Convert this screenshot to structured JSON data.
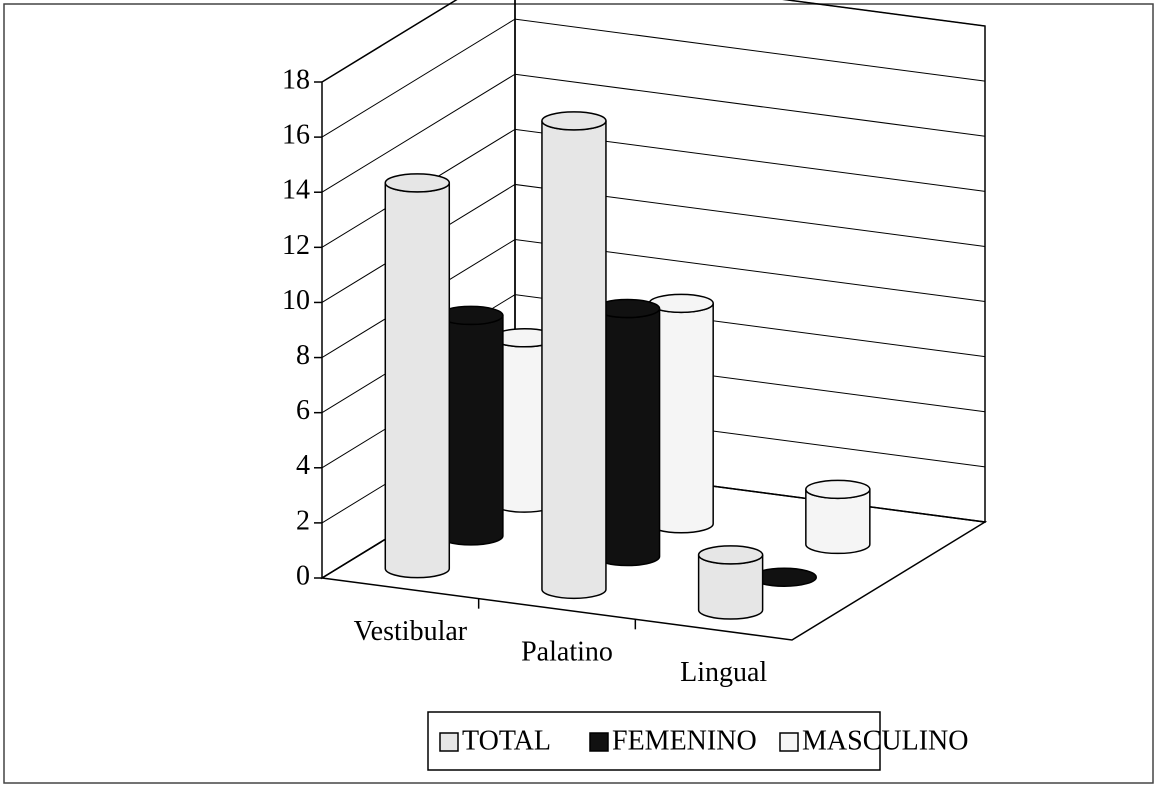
{
  "chart_data": {
    "type": "bar3d",
    "categories": [
      "Vestibular",
      "Palatino",
      "Lingual"
    ],
    "series": [
      {
        "name": "TOTAL",
        "color": "#e6e6e6",
        "values": [
          14,
          17,
          2
        ]
      },
      {
        "name": "FEMENINO",
        "color": "#111111",
        "values": [
          8,
          9,
          0
        ]
      },
      {
        "name": "MASCULINO",
        "color": "#f5f5f5",
        "values": [
          6,
          8,
          2
        ]
      }
    ],
    "ylim": [
      0,
      18
    ],
    "yticks": [
      0,
      2,
      4,
      6,
      8,
      10,
      12,
      14,
      16,
      18
    ],
    "grid": true,
    "legend": "bottom"
  }
}
